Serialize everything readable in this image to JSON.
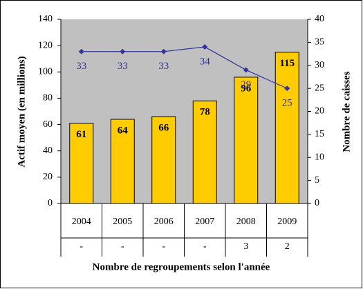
{
  "chart_data": {
    "type": "bar-line",
    "categories": [
      "2004",
      "2005",
      "2006",
      "2007",
      "2008",
      "2009"
    ],
    "categories2": [
      "-",
      "-",
      "-",
      "-",
      "3",
      "2"
    ],
    "x_label": "Nombre de regroupements selon l'année",
    "y_label": "Actif moyen (en millions)",
    "y2_label": "Nombre de caisses",
    "series": [
      {
        "type": "bar",
        "color": "#ffcc00",
        "values": [
          61,
          64,
          66,
          78,
          96,
          115
        ]
      },
      {
        "type": "line",
        "color": "#333399",
        "axis": "y2",
        "values": [
          33,
          33,
          33,
          34,
          29,
          25
        ]
      }
    ],
    "ylim": [
      0,
      140
    ],
    "yticks": [
      0,
      20,
      40,
      60,
      80,
      100,
      120,
      140
    ],
    "y2lim": [
      0,
      40
    ],
    "y2ticks": [
      0,
      5,
      10,
      15,
      20,
      25,
      30,
      35,
      40
    ],
    "plot_background": "#c0c0c0"
  }
}
